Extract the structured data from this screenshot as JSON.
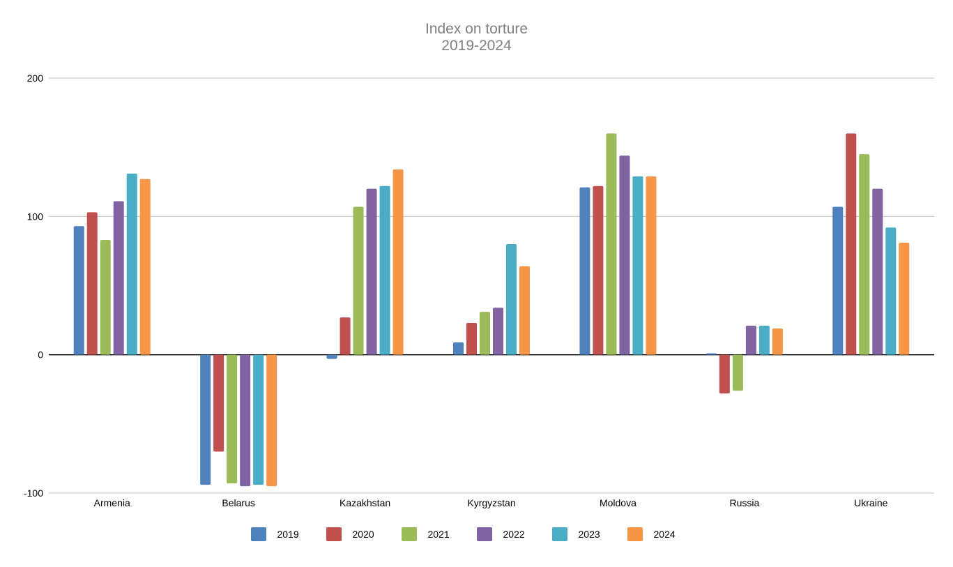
{
  "chart_data": {
    "type": "bar",
    "title": "Index on torture",
    "subtitle": "2019-2024",
    "categories": [
      "Armenia",
      "Belarus",
      "Kazakhstan",
      "Kyrgyzstan",
      "Moldova",
      "Russia",
      "Ukraine"
    ],
    "series": [
      {
        "name": "2019",
        "color": "#4f81bd",
        "values": [
          93,
          -94,
          -3,
          9,
          121,
          1,
          107
        ]
      },
      {
        "name": "2020",
        "color": "#c0504d",
        "values": [
          103,
          -70,
          27,
          23,
          122,
          -28,
          160
        ]
      },
      {
        "name": "2021",
        "color": "#9bbb59",
        "values": [
          83,
          -93,
          107,
          31,
          160,
          -26,
          145
        ]
      },
      {
        "name": "2022",
        "color": "#8064a2",
        "values": [
          111,
          -95,
          120,
          34,
          144,
          21,
          120
        ]
      },
      {
        "name": "2023",
        "color": "#4bacc6",
        "values": [
          131,
          -94,
          122,
          80,
          129,
          21,
          92
        ]
      },
      {
        "name": "2024",
        "color": "#f79646",
        "values": [
          127,
          -95,
          134,
          64,
          129,
          19,
          81
        ]
      }
    ],
    "ylim": [
      -100,
      200
    ],
    "yticks": [
      -100,
      0,
      100,
      200
    ],
    "grid": true,
    "legend_position": "bottom"
  }
}
